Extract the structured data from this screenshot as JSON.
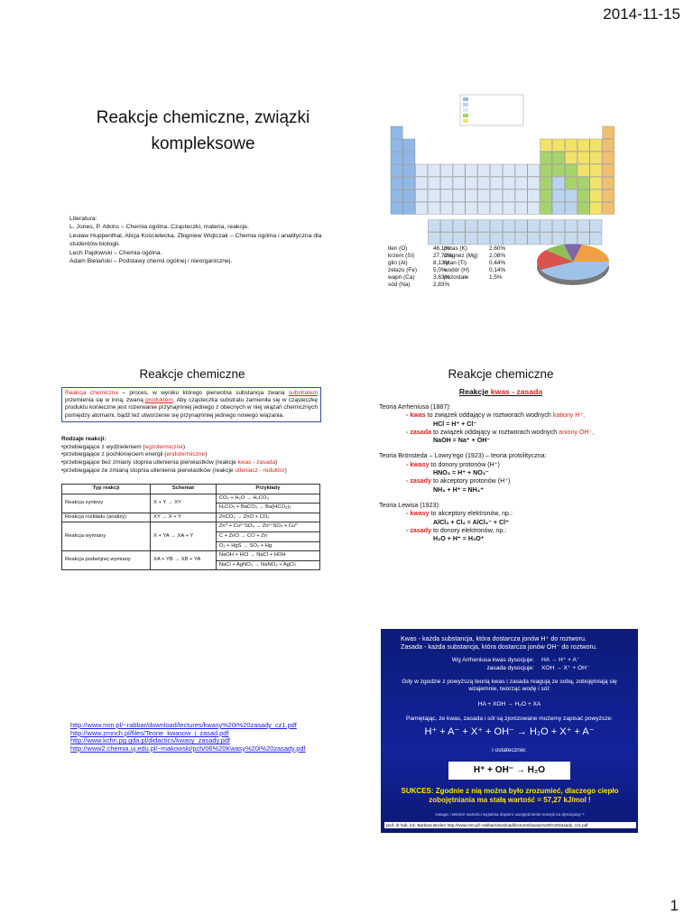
{
  "date": "2014-11-15",
  "page_number": "1",
  "slide1": {
    "title": "Reakcje chemiczne, związki kompleksowe",
    "literature": [
      "Literatura:",
      "L. Jones, P. Atkins – Chemia ogólna. Cząsteczki, materia, reakcje.",
      "Lesław Huppenthal, Alicja Kościelecka, Zbigniew Wojtczak – Chemia ogólna i analityczna dla studentów biologii.",
      "Lech Pajdowski – Chemia ogólna.",
      "Adam Bielański – Podstawy chemii ogólnej i nieorganicznej."
    ]
  },
  "slide2": {
    "abundance_left": [
      [
        "tlen (O)",
        "46,1%"
      ],
      [
        "krzem (Si)",
        "27,72%"
      ],
      [
        "glin (Al)",
        "8,13%"
      ],
      [
        "żelazo (Fe)",
        "5,0%"
      ],
      [
        "wapń (Ca)",
        "3,63%"
      ],
      [
        "sód (Na)",
        "2,83%"
      ]
    ],
    "abundance_right": [
      [
        "potas (K)",
        "2,60%"
      ],
      [
        "magnez (Mg)",
        "2,08%"
      ],
      [
        "tytan (Ti)",
        "0,44%"
      ],
      [
        "wodór (H)",
        "0,14%"
      ],
      [
        "pozostałe",
        "1,5%"
      ]
    ]
  },
  "slide3": {
    "title": "Reakcje chemiczne",
    "definition": [
      "Reakcja chemiczna",
      " – proces, w wyniku którego pierwotna substancja zwana ",
      "substratem",
      " przemienia się w inną, zwaną ",
      "produktem",
      ". Aby cząsteczka substratu zamieniła się w cząsteczkę produktu konieczne jest rozerwanie przynajmniej jednego z obecnych w niej wiązań chemicznych pomiędzy atomami, bądź też utworzenie się przynajmniej jednego nowego wiązania."
    ],
    "types_heading": "Rodzaje reakcji:",
    "types": [
      [
        "•przebiegające z wydzieleniem (",
        "egzotermiczne",
        ")"
      ],
      [
        "•przebiegające z pochłonięciem energii (",
        "endotermiczne",
        ")"
      ],
      [
        "•przebiegające bez zmiany stopnia utlenienia pierwiastków (reakcje ",
        "kwas - zasada",
        ")"
      ],
      [
        "•przebiegające ze zmianą stopnia utlenienia pierwiastków (reakcje ",
        "utleniacz - reduktor",
        ")"
      ]
    ],
    "table": {
      "header": [
        "Typ reakcji",
        "Schemat",
        "Przykłady"
      ],
      "rows": [
        [
          "Reakcja syntezy",
          "X + Y → XY",
          [
            "CO₂ + H₂O → H₂CO₃",
            "H₂CO₃ + BaCO₃ → Ba(HCO₃)₂"
          ]
        ],
        [
          "Reakcja rozkładu (analizy)",
          "XY → X + Y",
          [
            "ZnCO₃ → ZnO + CO₂"
          ]
        ],
        [
          "Reakcja wymiany",
          "X + YA → XA + Y",
          [
            "Zn⁰ + Cu²⁺SO₄ → Zn²⁺SO₄ + Cu⁰",
            "C + ZnO → CO + Zn",
            "O₂ + HgS → SO₂ + Hg"
          ]
        ],
        [
          "Reakcja podwójnej wymiany",
          "XA + YB → XB + YA",
          [
            "NaOH + HCl → NaCl + HOH",
            "NaCl + AgNO₃ → NaNO₃ + AgCl↓"
          ]
        ]
      ]
    }
  },
  "slide4": {
    "title": "Reakcje chemiczne",
    "subtitle": [
      "Reakcje ",
      "kwas - zasada"
    ],
    "theories": [
      {
        "heading": "Teoria Arrheniusa (1887):",
        "items": [
          {
            "term": "- kwas",
            "text": " to związek oddający w roztworach wodnych ",
            "highlight": "kationy H⁺,",
            "equation": "HCl = H⁺ + Cl⁻"
          },
          {
            "term": "- zasada",
            "text": " to związek oddający w roztworach wodnych ",
            "highlight": "aniony OH⁻,",
            "equation": "NaOH = Na⁺ + OH⁻"
          }
        ]
      },
      {
        "heading": "Teoria Brönsteda – Lowry'ego (1923) – teoria protolityczna:",
        "items": [
          {
            "term": "- kwasy",
            "text": " to donory protonów (H⁺)",
            "equation": "HNO₃ = H⁺ + NO₃⁻"
          },
          {
            "term": "- zasady",
            "text": " to akceptory protonów (H⁺)",
            "equation": "NH₃ + H⁺ = NH₄⁺"
          }
        ]
      },
      {
        "heading": "Teoria Lewisa (1923):",
        "items": [
          {
            "term": "- kwasy",
            "text": " to akceptory elektronów, np.:",
            "equation": "AlCl₃ + Cl₂ = AlCl₄⁻ + Cl⁺"
          },
          {
            "term": "- zasady",
            "text": " to donory elektronów, np.:",
            "equation": "H₂O + H⁺ = H₃O⁺"
          }
        ]
      }
    ]
  },
  "links": [
    "http://www.mm.pl/~rabbar/download/lectures/kwasy%20i%20zasady_cz1.pdf",
    "http://www.zmnch.pl/files/Teorie_kwasow_i_zasad.pdf",
    "http://www.kchn.pg.gda.pl/didactics/kwasy_zasady.pdf",
    "http://www2.chemia.uj.edu.pl/~makowski/pch/06%20Kwasy%20i%20zasady.pdf"
  ],
  "slide5": {
    "definitions": [
      "Kwas - każda substancja, która dostarcza jonów H⁺ do roztworu.",
      "Zasada - każda substancja, która dostarcza jonów OH⁻ do roztworu."
    ],
    "dissociation": [
      [
        "Wg Arrheniusa kwas dysocjuje:",
        "HA → H⁺ + A⁻"
      ],
      [
        "zasada dysocjuje:",
        "XOH → X⁺ + OH⁻"
      ]
    ],
    "neutralization_note": "Gdy w zgodzie z powyższą teorią kwas i zasada reagują ze sobą, zobojętniają się wzajemnie, tworząc wodę i sól:",
    "neutralization": "HA + XOH → H₂O + XA",
    "ionic_note": "Pamiętając, że kwas, zasada i sól są zjonizowane możemy zapisać powyższe:",
    "ionic": "H⁺ + A⁻ + X⁺ + OH⁻ → H₂O + X⁺ + A⁻",
    "final_note": "i ostatecznie:",
    "final": "H⁺ + OH⁻ → H₂O",
    "success": "SUKCES: Zgodnie z nią można było zrozumieć, dlaczego ciepło zobojętniania ma stałą wartość = 57,27 kJ/mol !",
    "remark": "Uwaga: niektóre wartości wyjaśnia dopiero uwzględnienie energii na dysocjację ?",
    "source": "prof. dr hab. inż. Barbara Becker http://www.mm.pl/~rabbar/download/lectures/kwasy%20i%20zasady_cz1.pdf"
  }
}
